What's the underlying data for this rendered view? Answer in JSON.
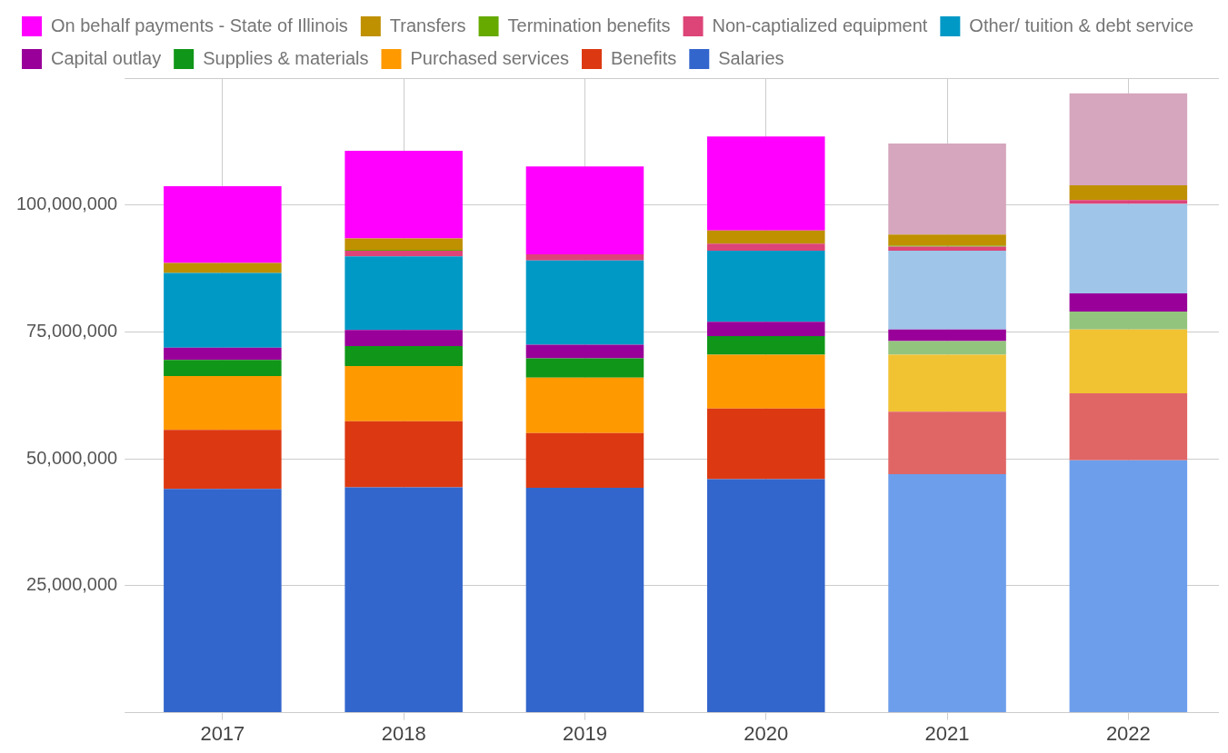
{
  "chart_data": {
    "type": "bar",
    "stacked": true,
    "legend": "top",
    "grid": true,
    "categories": [
      "2017",
      "2018",
      "2019",
      "2020",
      "2021",
      "2022"
    ],
    "ylim": [
      0,
      125000000
    ],
    "yticks": [
      {
        "value": 0,
        "label": null
      },
      {
        "value": 25000000,
        "label": "25,000,000"
      },
      {
        "value": 50000000,
        "label": "50,000,000"
      },
      {
        "value": 75000000,
        "label": "75,000,000"
      },
      {
        "value": 100000000,
        "label": "100,000,000"
      },
      {
        "value": 125000000,
        "label": null
      }
    ],
    "series": [
      {
        "name": "Salaries",
        "colors": [
          "#3366cc",
          "#3366cc",
          "#3366cc",
          "#3366cc",
          "#6d9eeb",
          "#6d9eeb"
        ],
        "values": [
          44100000,
          44400000,
          44300000,
          46000000,
          47000000,
          49700000
        ]
      },
      {
        "name": "Benefits",
        "colors": [
          "#dc3912",
          "#dc3912",
          "#dc3912",
          "#dc3912",
          "#e06666",
          "#e06666"
        ],
        "values": [
          11600000,
          13000000,
          10800000,
          13900000,
          12300000,
          13200000
        ]
      },
      {
        "name": "Purchased services",
        "colors": [
          "#ff9900",
          "#ff9900",
          "#ff9900",
          "#ff9900",
          "#f1c232",
          "#f1c232"
        ],
        "values": [
          10600000,
          10900000,
          10900000,
          10600000,
          11200000,
          12600000
        ]
      },
      {
        "name": "Supplies & materials",
        "colors": [
          "#109618",
          "#109618",
          "#109618",
          "#109618",
          "#93c47d",
          "#93c47d"
        ],
        "values": [
          3200000,
          3900000,
          3800000,
          3700000,
          2700000,
          3500000
        ]
      },
      {
        "name": "Capital outlay",
        "colors": [
          "#990099",
          "#990099",
          "#990099",
          "#990099",
          "#990099",
          "#990099"
        ],
        "values": [
          2400000,
          3200000,
          2700000,
          2800000,
          2300000,
          3600000
        ]
      },
      {
        "name": "Other/ tuition & debt service",
        "colors": [
          "#0099c6",
          "#0099c6",
          "#0099c6",
          "#0099c6",
          "#9fc5e8",
          "#9fc5e8"
        ],
        "values": [
          14700000,
          14500000,
          16600000,
          14000000,
          15500000,
          17600000
        ]
      },
      {
        "name": "Non-captialized equipment",
        "colors": [
          "#dd4477",
          "#dd4477",
          "#dd4477",
          "#dd4477",
          "#dd4477",
          "#dd4477"
        ],
        "values": [
          null,
          1100000,
          1200000,
          1400000,
          800000,
          800000
        ]
      },
      {
        "name": "Termination benefits",
        "colors": [
          "#66aa00",
          "#66aa00",
          "#66aa00",
          "#66aa00",
          "#66aa00",
          "#66aa00"
        ],
        "values": [
          null,
          200000,
          null,
          null,
          200000,
          null
        ]
      },
      {
        "name": "Transfers",
        "colors": [
          "#bf9000",
          "#bf9000",
          "#bf9000",
          "#bf9000",
          "#bf9000",
          "#bf9000"
        ],
        "values": [
          2000000,
          2200000,
          null,
          2600000,
          2200000,
          2900000
        ]
      },
      {
        "name": "On behalf payments - State of Illinois",
        "colors": [
          "#ff00ff",
          "#ff00ff",
          "#ff00ff",
          "#ff00ff",
          "#d5a6bd",
          "#d5a6bd"
        ],
        "values": [
          15100000,
          17300000,
          17300000,
          18500000,
          17900000,
          18100000
        ]
      }
    ]
  }
}
